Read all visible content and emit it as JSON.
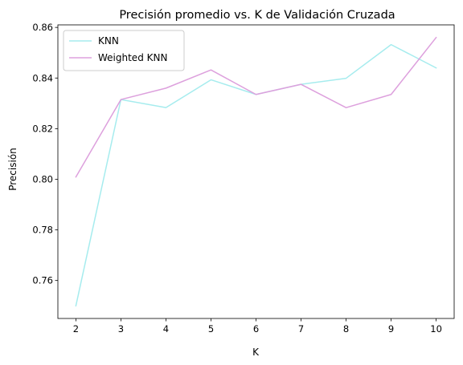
{
  "chart_data": {
    "type": "line",
    "title": "Precisión promedio vs. K de Validación Cruzada",
    "xlabel": "K",
    "ylabel": "Precisión",
    "x": [
      2,
      3,
      4,
      5,
      6,
      7,
      8,
      9,
      10
    ],
    "xlim": [
      1.6,
      10.4
    ],
    "ylim": [
      0.745,
      0.861
    ],
    "xticks": [
      2,
      3,
      4,
      5,
      6,
      7,
      8,
      9,
      10
    ],
    "yticks": [
      0.76,
      0.78,
      0.8,
      0.82,
      0.84,
      0.86
    ],
    "grid": false,
    "legend_position": "upper-left",
    "series": [
      {
        "name": "KNN",
        "color": "#a6ecee",
        "values": [
          0.75,
          0.8315,
          0.8283,
          0.8393,
          0.8335,
          0.8375,
          0.8399,
          0.8532,
          0.844
        ]
      },
      {
        "name": "Weighted KNN",
        "color": "#dda0dd",
        "values": [
          0.8009,
          0.8315,
          0.836,
          0.8432,
          0.8335,
          0.8375,
          0.8283,
          0.8335,
          0.856
        ]
      }
    ]
  }
}
